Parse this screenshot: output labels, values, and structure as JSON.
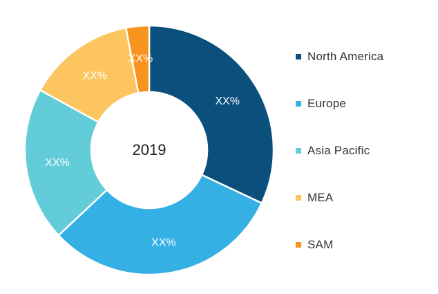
{
  "chart_data": {
    "type": "pie",
    "donut": true,
    "center_text": "2019",
    "slices": [
      {
        "name": "North America",
        "value": 32,
        "label": "XX%",
        "color": "#0b4f7d"
      },
      {
        "name": "Europe",
        "value": 31,
        "label": "XX%",
        "color": "#35b0e4"
      },
      {
        "name": "Asia Pacific",
        "value": 20,
        "label": "XX%",
        "color": "#62ccd8"
      },
      {
        "name": "MEA",
        "value": 14,
        "label": "XX%",
        "color": "#fcc55f"
      },
      {
        "name": "SAM",
        "value": 3,
        "label": "XX%",
        "color": "#f7931e"
      }
    ],
    "legend_position": "right"
  }
}
